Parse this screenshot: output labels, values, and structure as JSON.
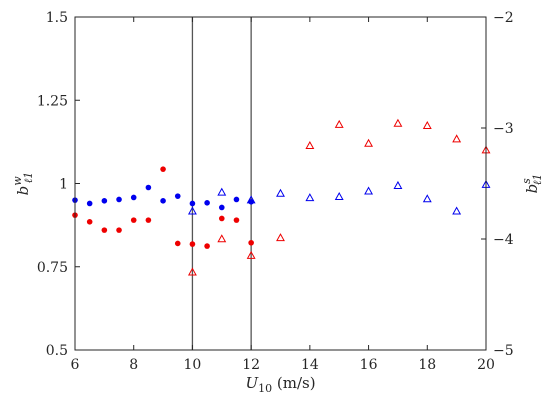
{
  "chart_data": {
    "type": "scatter",
    "title": "",
    "xlabel": "U10 (m/s)",
    "xlabel_parts": {
      "base": "U",
      "sub": "10",
      "unit": " (m/s)"
    },
    "ylabel_left_parts": {
      "base": "b",
      "sup": "w",
      "sub": "ℓ1"
    },
    "ylabel_right_parts": {
      "base": "b",
      "sup": "s",
      "sub": "ℓ1"
    },
    "xlim": [
      6,
      20
    ],
    "ylim_left": [
      0.5,
      1.5
    ],
    "ylim_right": [
      -5,
      -2
    ],
    "x_ticks": [
      "6",
      "8",
      "10",
      "12",
      "14",
      "16",
      "18",
      "20"
    ],
    "y_left_ticks": [
      "0.5",
      "0.75",
      "1",
      "1.25",
      "1.5"
    ],
    "y_right_ticks": [
      "-5",
      "-4",
      "-3",
      "-2"
    ],
    "vlines": [
      10,
      12
    ],
    "grid": false,
    "colors": {
      "blue": "#0000ee",
      "red": "#ee0000",
      "axis": "#262626",
      "vline": "#555555"
    },
    "series": [
      {
        "axis": "left",
        "marker": "dot",
        "color": "#0000ee",
        "x": [
          6,
          6.5,
          7,
          7.5,
          8,
          8.5,
          9,
          9.5,
          10,
          10.5,
          11,
          11.5,
          12
        ],
        "y": [
          0.95,
          0.94,
          0.948,
          0.952,
          0.958,
          0.988,
          0.948,
          0.962,
          0.94,
          0.942,
          0.928,
          0.952,
          0.945
        ]
      },
      {
        "axis": "left",
        "marker": "dot",
        "color": "#ee0000",
        "x": [
          6,
          6.5,
          7,
          7.5,
          8,
          8.5,
          9,
          9.5,
          10,
          10.5,
          11,
          11.5,
          12
        ],
        "y": [
          0.905,
          0.885,
          0.86,
          0.86,
          0.89,
          0.89,
          1.043,
          0.82,
          0.818,
          0.812,
          0.895,
          0.89,
          0.822
        ]
      },
      {
        "axis": "right",
        "marker": "triangle",
        "color": "#0000ee",
        "x": [
          10,
          11,
          12,
          13,
          14,
          15,
          16,
          17,
          18,
          19,
          20
        ],
        "y": [
          -3.75,
          -3.58,
          -3.65,
          -3.59,
          -3.63,
          -3.62,
          -3.57,
          -3.52,
          -3.64,
          -3.75,
          -3.51
        ]
      },
      {
        "axis": "right",
        "marker": "triangle",
        "color": "#ee0000",
        "x": [
          10,
          11,
          12,
          13,
          14,
          15,
          16,
          17,
          18,
          19,
          20
        ],
        "y": [
          -4.3,
          -4.0,
          -4.15,
          -3.99,
          -3.16,
          -2.97,
          -3.14,
          -2.96,
          -2.98,
          -3.1,
          -3.2
        ]
      }
    ]
  }
}
